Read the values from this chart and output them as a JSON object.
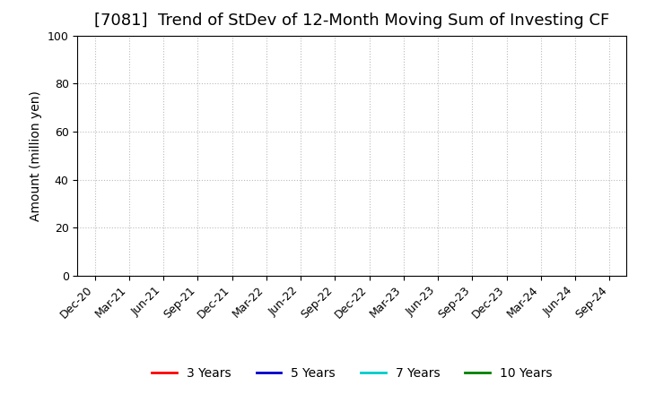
{
  "title": "[7081]  Trend of StDev of 12-Month Moving Sum of Investing CF",
  "ylabel": "Amount (million yen)",
  "ylim": [
    0,
    100
  ],
  "yticks": [
    0,
    20,
    40,
    60,
    80,
    100
  ],
  "x_labels": [
    "Dec-20",
    "Mar-21",
    "Jun-21",
    "Sep-21",
    "Dec-21",
    "Mar-22",
    "Jun-22",
    "Sep-22",
    "Dec-22",
    "Mar-23",
    "Jun-23",
    "Sep-23",
    "Dec-23",
    "Mar-24",
    "Jun-24",
    "Sep-24"
  ],
  "background_color": "#ffffff",
  "plot_bg_color": "#ffffff",
  "grid_color": "#bbbbbb",
  "legend_entries": [
    {
      "label": "3 Years",
      "color": "#ff0000"
    },
    {
      "label": "5 Years",
      "color": "#0000cc"
    },
    {
      "label": "7 Years",
      "color": "#00cccc"
    },
    {
      "label": "10 Years",
      "color": "#008000"
    }
  ],
  "title_fontsize": 13,
  "axis_label_fontsize": 10,
  "tick_fontsize": 9,
  "legend_fontsize": 10
}
